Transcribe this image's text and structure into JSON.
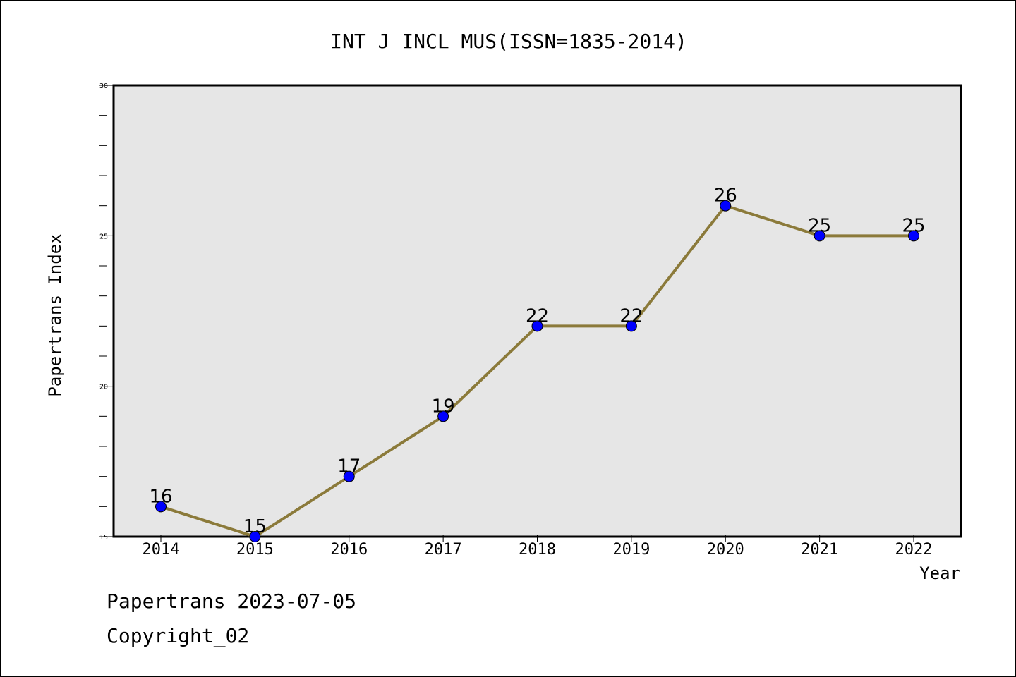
{
  "chart_data": {
    "type": "line",
    "title": "INT J INCL MUS(ISSN=1835-2014)",
    "xlabel": "Year",
    "ylabel": "Papertrans Index",
    "x": [
      "2014",
      "2015",
      "2016",
      "2017",
      "2018",
      "2019",
      "2020",
      "2021",
      "2022"
    ],
    "series": [
      {
        "values": [
          16,
          15,
          17,
          19,
          22,
          22,
          26,
          25,
          25
        ]
      }
    ],
    "data_labels": [
      "16",
      "15",
      "17",
      "19",
      "22",
      "22",
      "26",
      "25",
      "25"
    ],
    "ylim": [
      15,
      30
    ],
    "y_ticks": [
      15,
      20,
      25,
      30
    ],
    "y_tick_labels": [
      "15",
      "20",
      "25",
      "30"
    ],
    "grid": false,
    "colors": {
      "line": "#8B7A3A",
      "marker": "#0000FF",
      "plot_background": "#E6E6E6"
    }
  },
  "footer": {
    "line1": "Papertrans 2023-07-05",
    "line2": "Copyright_02"
  }
}
